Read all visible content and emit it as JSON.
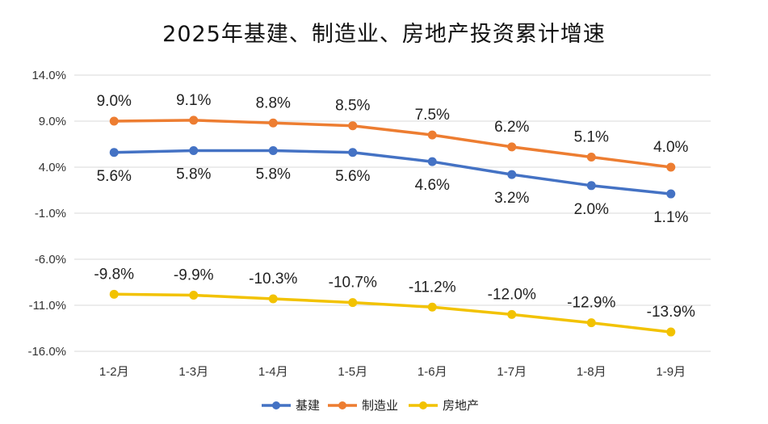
{
  "chart_data": {
    "type": "line",
    "title": "2025年基建、制造业、房地产投资累计增速",
    "categories": [
      "1-2月",
      "1-3月",
      "1-4月",
      "1-5月",
      "1-6月",
      "1-7月",
      "1-8月",
      "1-9月"
    ],
    "y_ticks": [
      "14.0%",
      "9.0%",
      "4.0%",
      "-1.0%",
      "-6.0%",
      "-11.0%",
      "-16.0%"
    ],
    "ylim": [
      -16,
      14
    ],
    "grid": true,
    "legend_position": "bottom",
    "series": [
      {
        "name": "基建",
        "color": "#4472C4",
        "values": [
          5.6,
          5.8,
          5.8,
          5.6,
          4.6,
          3.2,
          2.0,
          1.1
        ],
        "labels": [
          "5.6%",
          "5.8%",
          "5.8%",
          "5.6%",
          "4.6%",
          "3.2%",
          "2.0%",
          "1.1%"
        ],
        "label_position": "below"
      },
      {
        "name": "制造业",
        "color": "#ED7D31",
        "values": [
          9.0,
          9.1,
          8.8,
          8.5,
          7.5,
          6.2,
          5.1,
          4.0
        ],
        "labels": [
          "9.0%",
          "9.1%",
          "8.8%",
          "8.5%",
          "7.5%",
          "6.2%",
          "5.1%",
          "4.0%"
        ],
        "label_position": "above"
      },
      {
        "name": "房地产",
        "color": "#F2C200",
        "values": [
          -9.8,
          -9.9,
          -10.3,
          -10.7,
          -11.2,
          -12.0,
          -12.9,
          -13.9
        ],
        "labels": [
          "-9.8%",
          "-9.9%",
          "-10.3%",
          "-10.7%",
          "-11.2%",
          "-12.0%",
          "-12.9%",
          "-13.9%"
        ],
        "label_position": "above"
      }
    ]
  }
}
